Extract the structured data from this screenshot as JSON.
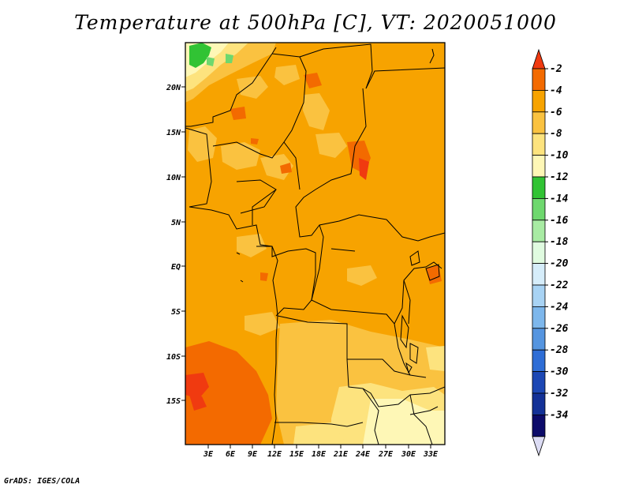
{
  "title": "Temperature at 500hPa [C], VT: 2020051000",
  "credit": "GrADS: IGES/COLA",
  "map": {
    "lat_ticks": [
      "20N",
      "15N",
      "10N",
      "5N",
      "EQ",
      "5S",
      "10S",
      "15S"
    ],
    "lon_ticks": [
      "3E",
      "6E",
      "9E",
      "12E",
      "15E",
      "18E",
      "21E",
      "24E",
      "27E",
      "30E",
      "33E"
    ]
  },
  "colorbar": {
    "labels": [
      "-2",
      "-4",
      "-6",
      "-8",
      "-10",
      "-12",
      "-14",
      "-16",
      "-18",
      "-20",
      "-22",
      "-24",
      "-26",
      "-28",
      "-30",
      "-32",
      "-34"
    ],
    "colors": [
      "#f03a10",
      "#f36a00",
      "#f7a300",
      "#fac240",
      "#fde37e",
      "#fef7b6",
      "#31c334",
      "#6ed86e",
      "#a8eba3",
      "#e0fbe0",
      "#d6edfa",
      "#a8d3f4",
      "#7db7ec",
      "#5595e0",
      "#2e6dd6",
      "#1c47b4",
      "#133197",
      "#0c0b6a",
      "#dcdcf4"
    ]
  }
}
